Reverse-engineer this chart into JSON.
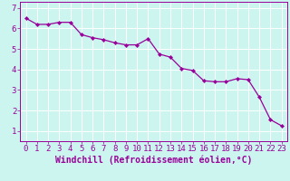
{
  "x": [
    0,
    1,
    2,
    3,
    4,
    5,
    6,
    7,
    8,
    9,
    10,
    11,
    12,
    13,
    14,
    15,
    16,
    17,
    18,
    19,
    20,
    21,
    22,
    23
  ],
  "y": [
    6.5,
    6.2,
    6.2,
    6.3,
    6.3,
    5.7,
    5.55,
    5.45,
    5.3,
    5.2,
    5.2,
    5.5,
    4.75,
    4.6,
    4.05,
    3.95,
    3.45,
    3.4,
    3.4,
    3.55,
    3.5,
    2.65,
    1.55,
    1.25
  ],
  "line_color": "#990099",
  "marker": "D",
  "marker_size": 2.2,
  "bg_color": "#ccf5f0",
  "grid_color": "#bbeeea",
  "xlabel": "Windchill (Refroidissement éolien,°C)",
  "xlim": [
    -0.5,
    23.5
  ],
  "ylim": [
    0.5,
    7.3
  ],
  "yticks": [
    1,
    2,
    3,
    4,
    5,
    6,
    7
  ],
  "xticks": [
    0,
    1,
    2,
    3,
    4,
    5,
    6,
    7,
    8,
    9,
    10,
    11,
    12,
    13,
    14,
    15,
    16,
    17,
    18,
    19,
    20,
    21,
    22,
    23
  ],
  "tick_color": "#990099",
  "label_color": "#990099",
  "spine_color": "#990099",
  "font_size_xlabel": 7.0,
  "font_size_ticks": 6.5
}
